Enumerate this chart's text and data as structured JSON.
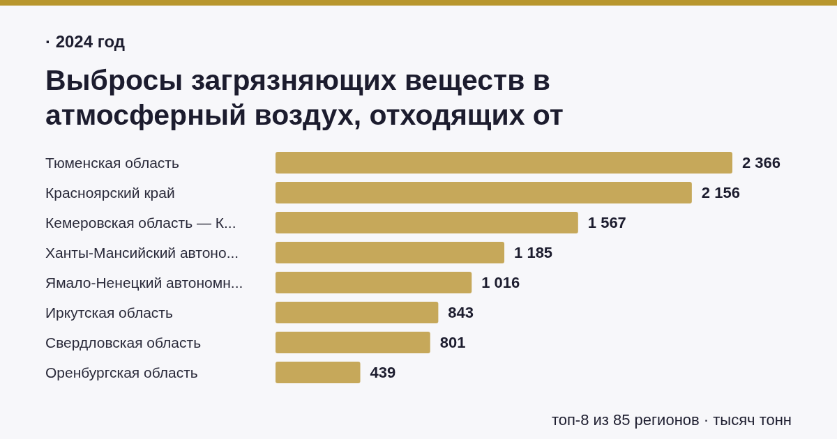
{
  "chart_data": {
    "type": "bar",
    "orientation": "horizontal",
    "title": "Выбросы загрязняющих веществ в атмосферный воздух, отходящих от",
    "subtitle": "· 2024 год",
    "categories": [
      "Тюменская область",
      "Красноярский край",
      "Кемеровская область — К...",
      "Ханты-Мансийский автоно...",
      "Ямало-Ненецкий автономн...",
      "Иркутская область",
      "Свердловская область",
      "Оренбургская область"
    ],
    "values": [
      2366,
      2156,
      1567,
      1185,
      1016,
      843,
      801,
      439
    ],
    "value_labels": [
      "2 366",
      "2 156",
      "1 567",
      "1 185",
      "1 016",
      "843",
      "801",
      "439"
    ],
    "color": "#c6a85a",
    "annotations": [
      "топ-8 из 85 регионов · тысяч тонн"
    ]
  }
}
